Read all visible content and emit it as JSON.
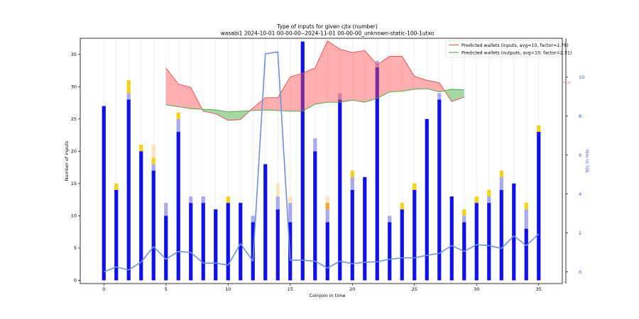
{
  "chart_data": {
    "type": "bar",
    "title": "Type of inputs for given cjtx (number)",
    "subtitle": "wasabi1 2024-10-01 00-00-00--2024-11-01 00-00-00_unknown-static-100-1utxo",
    "xlabel": "Coinjoin in time",
    "ylabel": "Number of inputs",
    "ylabel_right": "btc in mix",
    "xlim": [
      -1.9,
      36.9
    ],
    "ylim": [
      -0.5,
      37.5
    ],
    "ylim_right": [
      -0.6,
      12.0
    ],
    "x_ticks": [
      0,
      5,
      10,
      15,
      20,
      25,
      30,
      35
    ],
    "y_ticks": [
      0,
      5,
      10,
      15,
      20,
      25,
      30,
      35
    ],
    "y_ticks_right": [
      0,
      2,
      4,
      6,
      8,
      10
    ],
    "right_axis_marker": "20",
    "grid": "vertical",
    "legend_position": "top-right",
    "x": [
      0,
      1,
      2,
      3,
      4,
      5,
      6,
      7,
      8,
      9,
      10,
      11,
      12,
      13,
      14,
      15,
      16,
      17,
      18,
      19,
      20,
      21,
      22,
      23,
      24,
      25,
      26,
      27,
      28,
      29,
      30,
      31,
      32,
      33,
      34,
      35
    ],
    "stack_series": [
      {
        "key": "blue",
        "color": "#1010e8",
        "values": [
          27,
          14,
          28,
          20,
          17,
          10,
          23,
          12,
          12,
          11,
          12,
          12,
          9,
          18,
          11,
          9,
          37,
          20,
          9,
          28,
          14,
          16,
          33,
          9,
          11,
          14,
          25,
          28,
          13,
          9,
          12,
          12,
          14,
          15,
          8,
          23
        ]
      },
      {
        "key": "lightblue",
        "color": "#a9a9ec",
        "values": [
          0,
          0,
          1,
          0,
          1,
          2,
          2,
          1,
          1,
          0,
          0,
          0,
          1,
          0,
          2,
          3,
          0,
          2,
          2,
          1,
          2,
          0,
          1,
          1,
          0,
          0,
          0,
          1,
          0,
          1,
          0,
          1,
          2,
          0,
          3,
          0
        ]
      },
      {
        "key": "orange",
        "color": "#f5a623",
        "values": [
          0,
          0,
          0,
          0,
          0,
          0,
          0,
          0,
          0,
          0,
          0,
          0,
          0,
          0,
          0,
          0,
          0,
          0,
          1,
          0,
          0,
          0,
          0,
          0,
          0,
          0,
          0,
          0,
          0,
          0,
          0,
          0,
          0,
          0,
          0,
          0
        ]
      },
      {
        "key": "yellow",
        "color": "#f2d21a",
        "values": [
          0,
          1,
          2,
          1,
          1,
          0,
          1,
          0,
          0,
          0,
          1,
          0,
          0,
          0,
          0,
          0,
          0,
          0,
          0,
          0,
          1,
          0,
          0,
          0,
          1,
          1,
          0,
          0,
          0,
          1,
          1,
          1,
          1,
          0,
          1,
          1
        ]
      },
      {
        "key": "peach",
        "color": "#fde3c0",
        "values": [
          0,
          0,
          0,
          0,
          2,
          0,
          0,
          0,
          0,
          0,
          0,
          0,
          0,
          0,
          2,
          1,
          0,
          0,
          1,
          0,
          0,
          0,
          0,
          0,
          0,
          0,
          0,
          0,
          0,
          0,
          0,
          0,
          0,
          0,
          0,
          0
        ]
      }
    ],
    "btc_in_mix": [
      0.0,
      0.25,
      0.1,
      0.5,
      1.3,
      0.65,
      1.05,
      1.0,
      0.45,
      0.45,
      0.35,
      1.45,
      0.55,
      11.2,
      11.3,
      0.6,
      0.6,
      0.55,
      0.2,
      0.55,
      0.42,
      0.5,
      0.52,
      0.65,
      0.72,
      0.72,
      0.85,
      0.95,
      1.35,
      1.05,
      1.4,
      1.35,
      1.2,
      1.85,
      1.35,
      1.95
    ],
    "wallets_inputs": {
      "name": "Predicted wallets (inputs, avg=10, factor=1.78)",
      "color": "#e84a4a",
      "x": [
        5,
        6,
        7,
        8,
        9,
        10,
        11,
        12,
        13,
        14,
        15,
        16,
        17,
        18,
        19,
        20,
        21,
        22,
        23,
        24,
        25,
        26,
        27,
        28,
        29
      ],
      "values": [
        32.9,
        30.4,
        29.9,
        26.2,
        25.8,
        24.8,
        24.9,
        26.7,
        28.3,
        28.3,
        31.5,
        32.1,
        32.9,
        37.1,
        35.8,
        35.3,
        35.6,
        33.4,
        34.7,
        34.7,
        31.6,
        31.0,
        30.6,
        27.7,
        28.4
      ]
    },
    "wallets_outputs": {
      "name": "Predicted wallets (outputs, avg=10, factor=2.31)",
      "color": "#3fa33f",
      "x": [
        5,
        6,
        7,
        8,
        9,
        10,
        11,
        12,
        13,
        14,
        15,
        16,
        17,
        18,
        19,
        20,
        21,
        22,
        23,
        24,
        25,
        26,
        27,
        28,
        29
      ],
      "values": [
        27.2,
        26.9,
        26.6,
        26.5,
        26.4,
        26.1,
        26.2,
        26.3,
        26.4,
        26.3,
        26.2,
        26.2,
        27.3,
        27.6,
        27.6,
        27.9,
        27.6,
        28.2,
        29.2,
        29.3,
        29.6,
        29.7,
        29.2,
        29.6,
        29.5
      ]
    }
  }
}
